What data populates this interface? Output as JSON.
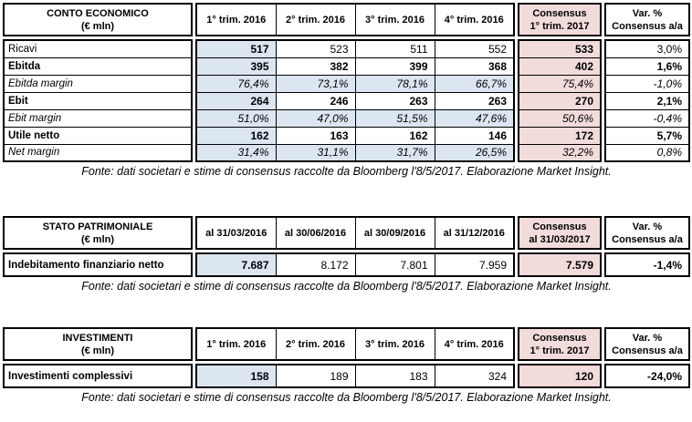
{
  "colors": {
    "first_column_highlight": "#dce6f1",
    "consensus_highlight": "#f2dcdb",
    "border": "#000000"
  },
  "source_note": "Fonte: dati societari e stime di consensus raccolte da Bloomberg l'8/5/2017. Elaborazione Market Insight.",
  "tables": [
    {
      "title": "CONTO ECONOMICO",
      "subtitle": "(€ mln)",
      "quarter_headers": [
        "1° trim. 2016",
        "2° trim. 2016",
        "3° trim. 2016",
        "4° trim. 2016"
      ],
      "consensus_header": [
        "Consensus",
        "1° trim. 2017"
      ],
      "var_header": [
        "Var. %",
        "Consensus a/a"
      ],
      "rows": [
        {
          "label": "Ricavi",
          "kind": "plain",
          "values": [
            "517",
            "523",
            "511",
            "552"
          ],
          "consensus": "533",
          "var": "3,0%"
        },
        {
          "label": "Ebitda",
          "kind": "bold",
          "values": [
            "395",
            "382",
            "399",
            "368"
          ],
          "consensus": "402",
          "var": "1,6%"
        },
        {
          "label": "Ebitda margin",
          "kind": "margin",
          "values": [
            "76,4%",
            "73,1%",
            "78,1%",
            "66,7%"
          ],
          "consensus": "75,4%",
          "var": "-1,0%"
        },
        {
          "label": "Ebit",
          "kind": "bold",
          "values": [
            "264",
            "246",
            "263",
            "263"
          ],
          "consensus": "270",
          "var": "2,1%"
        },
        {
          "label": "Ebit margin",
          "kind": "margin",
          "values": [
            "51,0%",
            "47,0%",
            "51,5%",
            "47,6%"
          ],
          "consensus": "50,6%",
          "var": "-0,4%"
        },
        {
          "label": "Utile netto",
          "kind": "bold",
          "values": [
            "162",
            "163",
            "162",
            "146"
          ],
          "consensus": "172",
          "var": "5,7%"
        },
        {
          "label": "Net margin",
          "kind": "margin",
          "values": [
            "31,4%",
            "31,1%",
            "31,7%",
            "26,5%"
          ],
          "consensus": "32,2%",
          "var": "0,8%"
        }
      ]
    },
    {
      "title": "STATO PATRIMONIALE",
      "subtitle": "(€ mln)",
      "quarter_headers": [
        "al 31/03/2016",
        "al 30/06/2016",
        "al 30/09/2016",
        "al 31/12/2016"
      ],
      "consensus_header": [
        "Consensus",
        "al 31/03/2017"
      ],
      "var_header": [
        "Var. %",
        "Consensus a/a"
      ],
      "rows": [
        {
          "label": "Indebitamento finanziario netto",
          "kind": "single",
          "values": [
            "7.687",
            "8.172",
            "7.801",
            "7.959"
          ],
          "consensus": "7.579",
          "var": "-1,4%"
        }
      ]
    },
    {
      "title": "INVESTIMENTI",
      "subtitle": "(€ mln)",
      "quarter_headers": [
        "1° trim. 2016",
        "2° trim. 2016",
        "3° trim. 2016",
        "4° trim. 2016"
      ],
      "consensus_header": [
        "Consensus",
        "1° trim. 2017"
      ],
      "var_header": [
        "Var. %",
        "Consensus a/a"
      ],
      "rows": [
        {
          "label": "Investimenti complessivi",
          "kind": "single",
          "values": [
            "158",
            "189",
            "183",
            "324"
          ],
          "consensus": "120",
          "var": "-24,0%"
        }
      ]
    }
  ]
}
